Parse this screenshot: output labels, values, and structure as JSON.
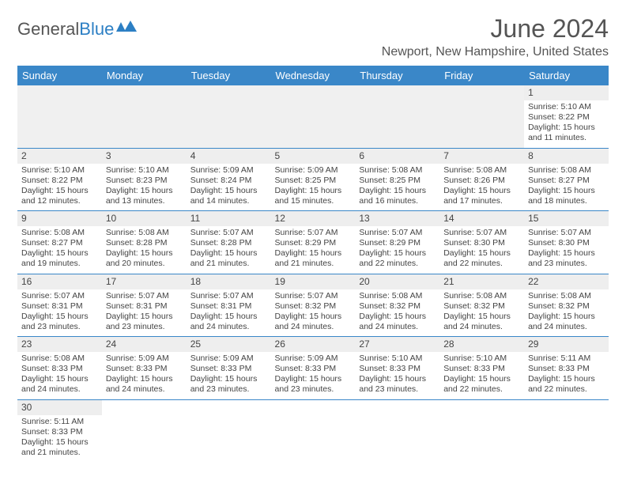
{
  "logo": {
    "text1": "General",
    "text2": "Blue"
  },
  "title": "June 2024",
  "location": "Newport, New Hampshire, United States",
  "header_bg": "#3a87c8",
  "header_fg": "#ffffff",
  "border_color": "#3a87c8",
  "columns": [
    "Sunday",
    "Monday",
    "Tuesday",
    "Wednesday",
    "Thursday",
    "Friday",
    "Saturday"
  ],
  "weeks": [
    [
      null,
      null,
      null,
      null,
      null,
      null,
      {
        "n": "1",
        "sunrise": "5:10 AM",
        "sunset": "8:22 PM",
        "daylight": "15 hours and 11 minutes."
      }
    ],
    [
      {
        "n": "2",
        "sunrise": "5:10 AM",
        "sunset": "8:22 PM",
        "daylight": "15 hours and 12 minutes."
      },
      {
        "n": "3",
        "sunrise": "5:10 AM",
        "sunset": "8:23 PM",
        "daylight": "15 hours and 13 minutes."
      },
      {
        "n": "4",
        "sunrise": "5:09 AM",
        "sunset": "8:24 PM",
        "daylight": "15 hours and 14 minutes."
      },
      {
        "n": "5",
        "sunrise": "5:09 AM",
        "sunset": "8:25 PM",
        "daylight": "15 hours and 15 minutes."
      },
      {
        "n": "6",
        "sunrise": "5:08 AM",
        "sunset": "8:25 PM",
        "daylight": "15 hours and 16 minutes."
      },
      {
        "n": "7",
        "sunrise": "5:08 AM",
        "sunset": "8:26 PM",
        "daylight": "15 hours and 17 minutes."
      },
      {
        "n": "8",
        "sunrise": "5:08 AM",
        "sunset": "8:27 PM",
        "daylight": "15 hours and 18 minutes."
      }
    ],
    [
      {
        "n": "9",
        "sunrise": "5:08 AM",
        "sunset": "8:27 PM",
        "daylight": "15 hours and 19 minutes."
      },
      {
        "n": "10",
        "sunrise": "5:08 AM",
        "sunset": "8:28 PM",
        "daylight": "15 hours and 20 minutes."
      },
      {
        "n": "11",
        "sunrise": "5:07 AM",
        "sunset": "8:28 PM",
        "daylight": "15 hours and 21 minutes."
      },
      {
        "n": "12",
        "sunrise": "5:07 AM",
        "sunset": "8:29 PM",
        "daylight": "15 hours and 21 minutes."
      },
      {
        "n": "13",
        "sunrise": "5:07 AM",
        "sunset": "8:29 PM",
        "daylight": "15 hours and 22 minutes."
      },
      {
        "n": "14",
        "sunrise": "5:07 AM",
        "sunset": "8:30 PM",
        "daylight": "15 hours and 22 minutes."
      },
      {
        "n": "15",
        "sunrise": "5:07 AM",
        "sunset": "8:30 PM",
        "daylight": "15 hours and 23 minutes."
      }
    ],
    [
      {
        "n": "16",
        "sunrise": "5:07 AM",
        "sunset": "8:31 PM",
        "daylight": "15 hours and 23 minutes."
      },
      {
        "n": "17",
        "sunrise": "5:07 AM",
        "sunset": "8:31 PM",
        "daylight": "15 hours and 23 minutes."
      },
      {
        "n": "18",
        "sunrise": "5:07 AM",
        "sunset": "8:31 PM",
        "daylight": "15 hours and 24 minutes."
      },
      {
        "n": "19",
        "sunrise": "5:07 AM",
        "sunset": "8:32 PM",
        "daylight": "15 hours and 24 minutes."
      },
      {
        "n": "20",
        "sunrise": "5:08 AM",
        "sunset": "8:32 PM",
        "daylight": "15 hours and 24 minutes."
      },
      {
        "n": "21",
        "sunrise": "5:08 AM",
        "sunset": "8:32 PM",
        "daylight": "15 hours and 24 minutes."
      },
      {
        "n": "22",
        "sunrise": "5:08 AM",
        "sunset": "8:32 PM",
        "daylight": "15 hours and 24 minutes."
      }
    ],
    [
      {
        "n": "23",
        "sunrise": "5:08 AM",
        "sunset": "8:33 PM",
        "daylight": "15 hours and 24 minutes."
      },
      {
        "n": "24",
        "sunrise": "5:09 AM",
        "sunset": "8:33 PM",
        "daylight": "15 hours and 24 minutes."
      },
      {
        "n": "25",
        "sunrise": "5:09 AM",
        "sunset": "8:33 PM",
        "daylight": "15 hours and 23 minutes."
      },
      {
        "n": "26",
        "sunrise": "5:09 AM",
        "sunset": "8:33 PM",
        "daylight": "15 hours and 23 minutes."
      },
      {
        "n": "27",
        "sunrise": "5:10 AM",
        "sunset": "8:33 PM",
        "daylight": "15 hours and 23 minutes."
      },
      {
        "n": "28",
        "sunrise": "5:10 AM",
        "sunset": "8:33 PM",
        "daylight": "15 hours and 22 minutes."
      },
      {
        "n": "29",
        "sunrise": "5:11 AM",
        "sunset": "8:33 PM",
        "daylight": "15 hours and 22 minutes."
      }
    ],
    [
      {
        "n": "30",
        "sunrise": "5:11 AM",
        "sunset": "8:33 PM",
        "daylight": "15 hours and 21 minutes."
      },
      null,
      null,
      null,
      null,
      null,
      null
    ]
  ],
  "labels": {
    "sunrise": "Sunrise:",
    "sunset": "Sunset:",
    "daylight": "Daylight:"
  }
}
